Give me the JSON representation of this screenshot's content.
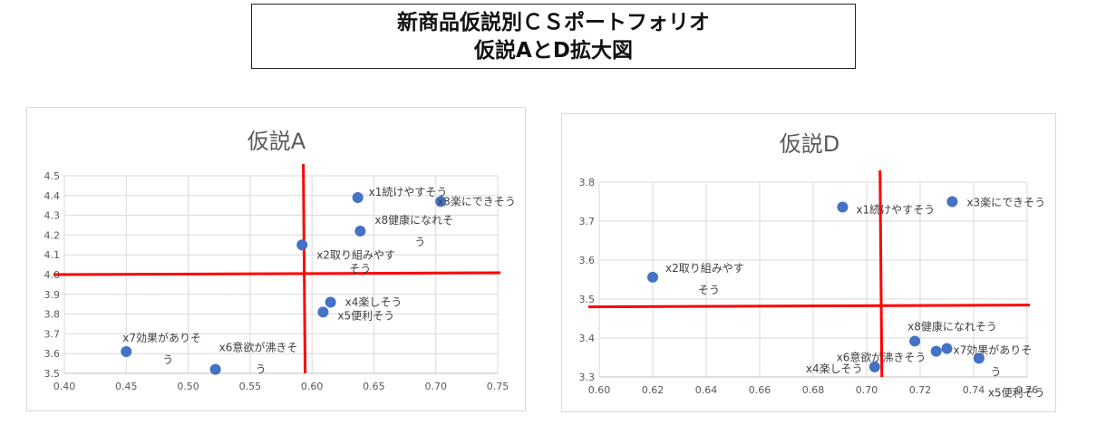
{
  "header": {
    "line1": "新商品仮説別ＣＳポートフォリオ",
    "line2": "仮説AとD拡大図"
  },
  "chart_data": [
    {
      "type": "scatter",
      "title": "仮説A",
      "xlim": [
        0.4,
        0.75
      ],
      "ylim": [
        3.5,
        4.5
      ],
      "x_ticks": [
        "0.40",
        "0.45",
        "0.50",
        "0.55",
        "0.60",
        "0.65",
        "0.70",
        "0.75"
      ],
      "y_ticks": [
        "3.5",
        "3.6",
        "3.7",
        "3.8",
        "3.9",
        "4.0",
        "4.1",
        "4.2",
        "4.3",
        "4.4",
        "4.5"
      ],
      "grid": true,
      "point_color": "#4472C4",
      "crosshair_color": "#FF0000",
      "crosshair": {
        "x": 0.593,
        "y": 4.0
      },
      "points": [
        {
          "label": [
            "x1続けやすそう"
          ],
          "x": 0.637,
          "y": 4.39
        },
        {
          "label": [
            "x3楽にできそう"
          ],
          "x": 0.704,
          "y": 4.37
        },
        {
          "label": [
            "x8健康になれそ",
            "う"
          ],
          "x": 0.639,
          "y": 4.22
        },
        {
          "label": [
            "x2取り組みやす",
            "そう"
          ],
          "x": 0.592,
          "y": 4.15
        },
        {
          "label": [
            "x4楽しそう"
          ],
          "x": 0.615,
          "y": 3.86
        },
        {
          "label": [
            "x5便利そう"
          ],
          "x": 0.609,
          "y": 3.81
        },
        {
          "label": [
            "x7効果がありそ",
            "う"
          ],
          "x": 0.45,
          "y": 3.61
        },
        {
          "label": [
            "x6意欲が沸きそ",
            "う"
          ],
          "x": 0.522,
          "y": 3.52
        }
      ]
    },
    {
      "type": "scatter",
      "title": "仮説D",
      "xlim": [
        0.6,
        0.76
      ],
      "ylim": [
        3.3,
        3.8
      ],
      "x_ticks": [
        "0.60",
        "0.62",
        "0.64",
        "0.66",
        "0.68",
        "0.70",
        "0.72",
        "0.74",
        "0.76"
      ],
      "y_ticks": [
        "3.3",
        "3.4",
        "3.5",
        "3.6",
        "3.7",
        "3.8"
      ],
      "grid": true,
      "point_color": "#4472C4",
      "crosshair_color": "#FF0000",
      "crosshair": {
        "x": 0.705,
        "y": 3.48
      },
      "points": [
        {
          "label": [
            "x1続けやすそう"
          ],
          "x": 0.691,
          "y": 3.736
        },
        {
          "label": [
            "x3楽にできそう"
          ],
          "x": 0.732,
          "y": 3.75
        },
        {
          "label": [
            "x2取り組みやす",
            "そう"
          ],
          "x": 0.62,
          "y": 3.556
        },
        {
          "label": [
            "x8健康になれそう"
          ],
          "x": 0.718,
          "y": 3.392
        },
        {
          "label": [
            "x6意欲が沸きそう"
          ],
          "x": 0.726,
          "y": 3.366
        },
        {
          "label": [
            "x7効果がありそ",
            "う"
          ],
          "x": 0.73,
          "y": 3.373
        },
        {
          "label": [
            "x4楽しそう"
          ],
          "x": 0.703,
          "y": 3.326
        },
        {
          "label": [
            "x5便利そう"
          ],
          "x": 0.742,
          "y": 3.348
        }
      ]
    }
  ]
}
